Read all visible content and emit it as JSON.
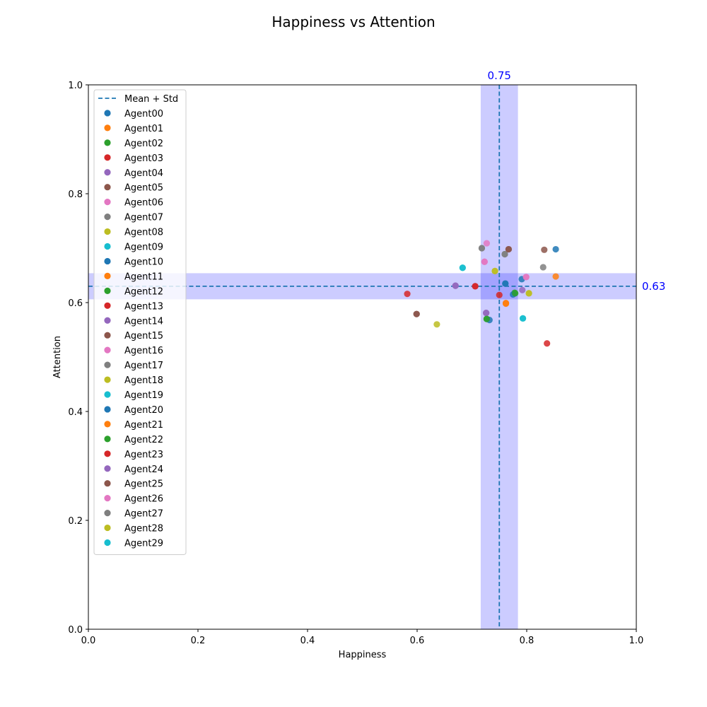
{
  "chart_data": {
    "type": "scatter",
    "title": "Happiness vs Attention",
    "xlabel": "Happiness",
    "ylabel": "Attention",
    "xlim": [
      0,
      1
    ],
    "ylim": [
      0,
      1
    ],
    "xticks": [
      "0.0",
      "0.2",
      "0.4",
      "0.6",
      "0.8",
      "1.0"
    ],
    "yticks": [
      "0.0",
      "0.2",
      "0.4",
      "0.6",
      "0.8",
      "1.0"
    ],
    "grid": false,
    "legend_placement": "top-left",
    "mean_line_label": "Mean + Std",
    "mean": {
      "x": 0.75,
      "y": 0.63,
      "x_label": "0.75",
      "y_label": "0.63"
    },
    "std": {
      "x": 0.034,
      "y": 0.024
    },
    "colors": {
      "mean_line": "#1f77b4",
      "band": "#0000ff",
      "annotation": "#0000ff"
    },
    "series": [
      {
        "name": "Agent00",
        "color": "#1f77b4",
        "points": [
          [
            0.853,
            0.698
          ],
          [
            0.791,
            0.643
          ]
        ]
      },
      {
        "name": "Agent01",
        "color": "#ff7f0e",
        "points": [
          [
            0.853,
            0.648
          ],
          [
            0.762,
            0.599
          ]
        ]
      },
      {
        "name": "Agent02",
        "color": "#2ca02c",
        "points": [
          [
            0.727,
            0.57
          ],
          [
            0.778,
            0.618
          ]
        ]
      },
      {
        "name": "Agent03",
        "color": "#d62728",
        "points": [
          [
            0.837,
            0.525
          ],
          [
            0.582,
            0.616
          ],
          [
            0.706,
            0.63
          ]
        ]
      },
      {
        "name": "Agent04",
        "color": "#9467bd",
        "points": [
          [
            0.726,
            0.581
          ],
          [
            0.67,
            0.631
          ],
          [
            0.792,
            0.623
          ]
        ]
      },
      {
        "name": "Agent05",
        "color": "#8c564b",
        "points": [
          [
            0.832,
            0.697
          ],
          [
            0.599,
            0.579
          ],
          [
            0.767,
            0.698
          ]
        ]
      },
      {
        "name": "Agent06",
        "color": "#e377c2",
        "points": [
          [
            0.727,
            0.709
          ],
          [
            0.723,
            0.675
          ],
          [
            0.799,
            0.647
          ]
        ]
      },
      {
        "name": "Agent07",
        "color": "#7f7f7f",
        "points": [
          [
            0.83,
            0.665
          ],
          [
            0.718,
            0.7
          ],
          [
            0.76,
            0.689
          ]
        ]
      },
      {
        "name": "Agent08",
        "color": "#bcbd22",
        "points": [
          [
            0.636,
            0.56
          ],
          [
            0.742,
            0.658
          ],
          [
            0.804,
            0.617
          ]
        ]
      },
      {
        "name": "Agent09",
        "color": "#17becf",
        "points": [
          [
            0.683,
            0.664
          ],
          [
            0.793,
            0.571
          ]
        ]
      },
      {
        "name": "Agent10",
        "color": "#1f77b4",
        "points": [
          [
            0.732,
            0.568
          ],
          [
            0.761,
            0.635
          ],
          [
            0.775,
            0.615
          ]
        ]
      },
      {
        "name": "Agent11",
        "color": "#ff7f0e",
        "points": [
          [
            0.762,
            0.598
          ]
        ]
      },
      {
        "name": "Agent12",
        "color": "#2ca02c",
        "points": [
          [
            0.779,
            0.617
          ]
        ]
      },
      {
        "name": "Agent13",
        "color": "#d62728",
        "points": [
          [
            0.75,
            0.614
          ]
        ]
      },
      {
        "name": "Agent14",
        "color": "#9467bd",
        "points": [
          [
            0.726,
            0.581
          ]
        ]
      },
      {
        "name": "Agent15",
        "color": "#8c564b",
        "points": [
          [
            0.599,
            0.579
          ]
        ]
      },
      {
        "name": "Agent16",
        "color": "#e377c2",
        "points": [
          [
            0.799,
            0.647
          ]
        ]
      },
      {
        "name": "Agent17",
        "color": "#7f7f7f",
        "points": [
          [
            0.76,
            0.689
          ]
        ]
      },
      {
        "name": "Agent18",
        "color": "#bcbd22",
        "points": [
          [
            0.804,
            0.617
          ]
        ]
      },
      {
        "name": "Agent19",
        "color": "#17becf",
        "points": [
          [
            0.793,
            0.571
          ]
        ]
      },
      {
        "name": "Agent20",
        "color": "#1f77b4",
        "points": [
          [
            0.761,
            0.635
          ]
        ]
      },
      {
        "name": "Agent21",
        "color": "#ff7f0e",
        "points": [
          [
            0.762,
            0.599
          ]
        ]
      },
      {
        "name": "Agent22",
        "color": "#2ca02c",
        "points": [
          [
            0.727,
            0.57
          ]
        ]
      },
      {
        "name": "Agent23",
        "color": "#d62728",
        "points": [
          [
            0.706,
            0.63
          ]
        ]
      },
      {
        "name": "Agent24",
        "color": "#9467bd",
        "points": [
          [
            0.67,
            0.631
          ]
        ]
      },
      {
        "name": "Agent25",
        "color": "#8c564b",
        "points": [
          [
            0.767,
            0.698
          ]
        ]
      },
      {
        "name": "Agent26",
        "color": "#e377c2",
        "points": [
          [
            0.723,
            0.675
          ]
        ]
      },
      {
        "name": "Agent27",
        "color": "#7f7f7f",
        "points": [
          [
            0.718,
            0.7
          ]
        ]
      },
      {
        "name": "Agent28",
        "color": "#bcbd22",
        "points": [
          [
            0.742,
            0.658
          ]
        ]
      },
      {
        "name": "Agent29",
        "color": "#17becf",
        "points": [
          [
            0.683,
            0.664
          ]
        ]
      }
    ]
  }
}
